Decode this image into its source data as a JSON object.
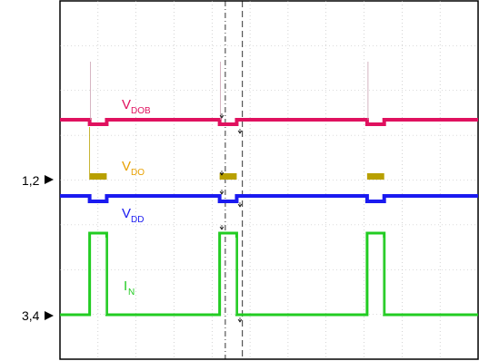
{
  "chart_data": {
    "type": "line",
    "title": "",
    "grid": true,
    "channel_markers": [
      {
        "label": "1,2"
      },
      {
        "label": "3,4"
      }
    ],
    "series": [
      {
        "name": "V",
        "subscript": "DOB",
        "color": "#e0115f",
        "levels": {
          "baseline": 0,
          "pulse_dip": -0.15
        }
      },
      {
        "name": "V",
        "subscript": "DO",
        "color": "#b8a000",
        "levels": {
          "baseline": -0.6,
          "pulse": 0
        }
      },
      {
        "name": "V",
        "subscript": "DD",
        "color": "#1a1af0",
        "levels": {
          "baseline": 0,
          "pulse_dip": -0.15
        }
      },
      {
        "name": "I",
        "subscript": "N",
        "color": "#22cc22",
        "levels": {
          "baseline": 0,
          "pulse": 1
        }
      }
    ],
    "pulses": [
      {
        "start_div": 0.78,
        "end_div": 1.23
      },
      {
        "start_div": 4.2,
        "end_div": 4.65
      },
      {
        "start_div": 8.08,
        "end_div": 8.53
      }
    ],
    "cursors_div": [
      4.35,
      4.8
    ],
    "divisions": {
      "x": 11,
      "y": 8
    }
  }
}
